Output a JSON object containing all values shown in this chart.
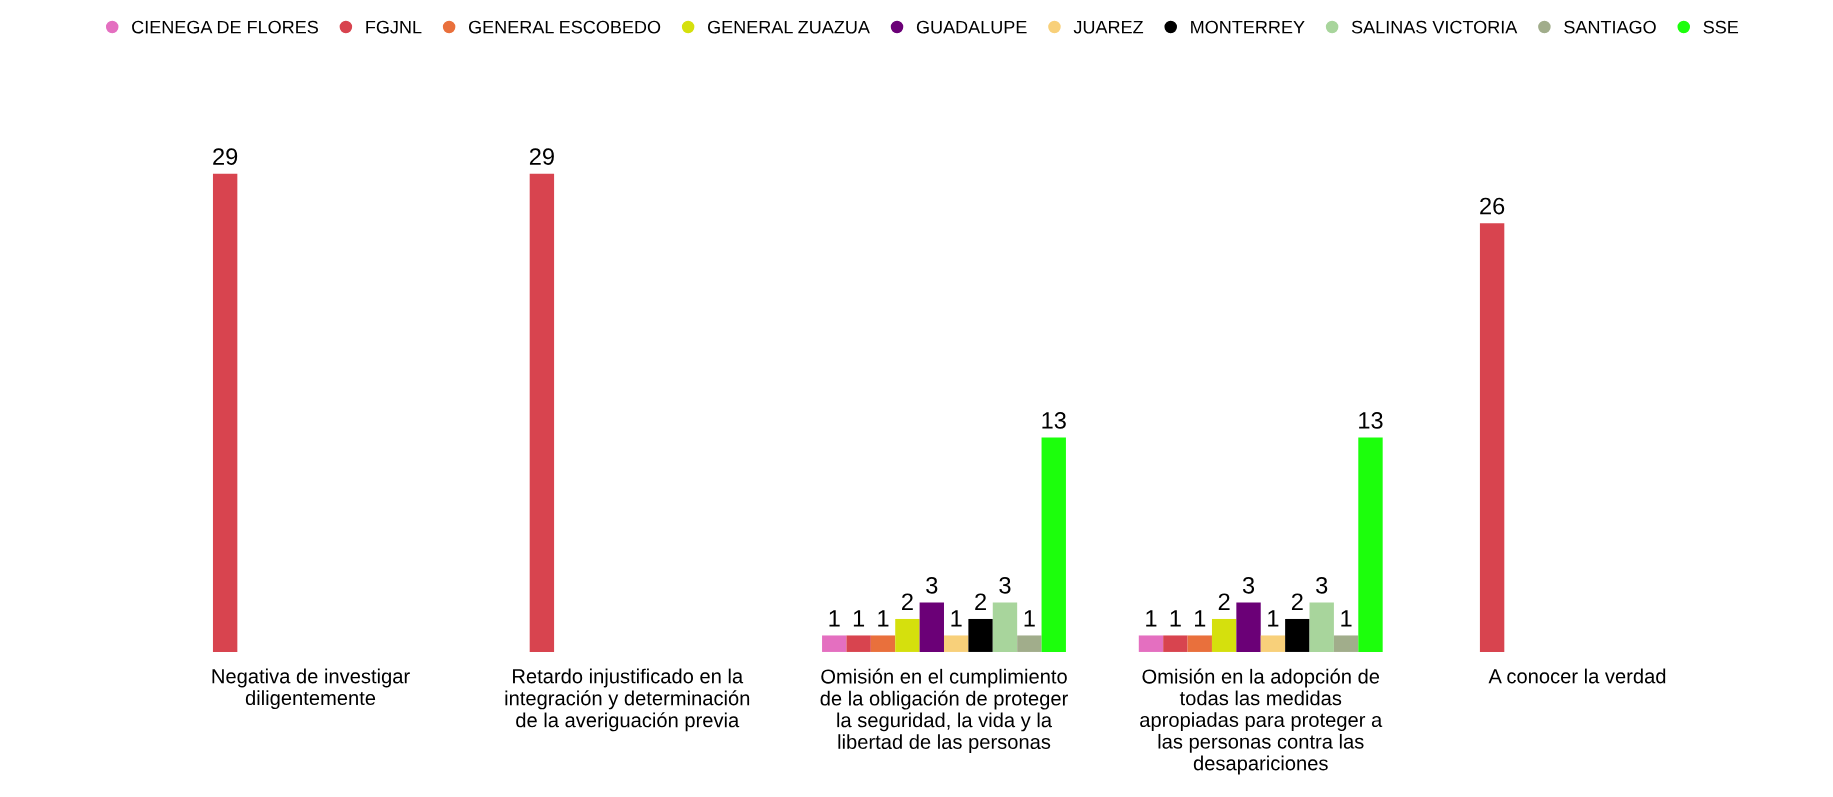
{
  "chart_data": {
    "type": "bar",
    "categories": [
      "Negativa de investigar\ndiligentemente",
      "Retardo injustificado en la\nintegración y determinación\nde la averiguación previa",
      "Omisión en el cumplimiento\nde la obligación de proteger\nla seguridad, la vida y la\nlibertad de las personas",
      "Omisión en la adopción de\ntodas las medidas\napropiadas para proteger a\nlas personas contra las\ndesapariciones",
      "A conocer la verdad"
    ],
    "series": [
      {
        "name": "CIENEGA DE FLORES",
        "color": "#e46fc0",
        "values": [
          null,
          null,
          1,
          1,
          null
        ]
      },
      {
        "name": "FGJNL",
        "color": "#d8444f",
        "values": [
          29,
          29,
          1,
          1,
          26
        ]
      },
      {
        "name": "GENERAL ESCOBEDO",
        "color": "#e9703c",
        "values": [
          null,
          null,
          1,
          1,
          null
        ]
      },
      {
        "name": "GENERAL ZUAZUA",
        "color": "#d5e00d",
        "values": [
          null,
          null,
          2,
          2,
          null
        ]
      },
      {
        "name": "GUADALUPE",
        "color": "#6b0077",
        "values": [
          null,
          null,
          3,
          3,
          null
        ]
      },
      {
        "name": "JUAREZ",
        "color": "#f8d07a",
        "values": [
          null,
          null,
          1,
          1,
          null
        ]
      },
      {
        "name": "MONTERREY",
        "color": "#000000",
        "values": [
          null,
          null,
          2,
          2,
          null
        ]
      },
      {
        "name": "SALINAS VICTORIA",
        "color": "#a8d59c",
        "values": [
          null,
          null,
          3,
          3,
          null
        ]
      },
      {
        "name": "SANTIAGO",
        "color": "#a1ad8b",
        "values": [
          null,
          null,
          1,
          1,
          null
        ]
      },
      {
        "name": "SSE",
        "color": "#1cff0c",
        "values": [
          null,
          null,
          13,
          13,
          null
        ]
      }
    ],
    "data_labels": true,
    "legend": "top",
    "grid": false
  }
}
